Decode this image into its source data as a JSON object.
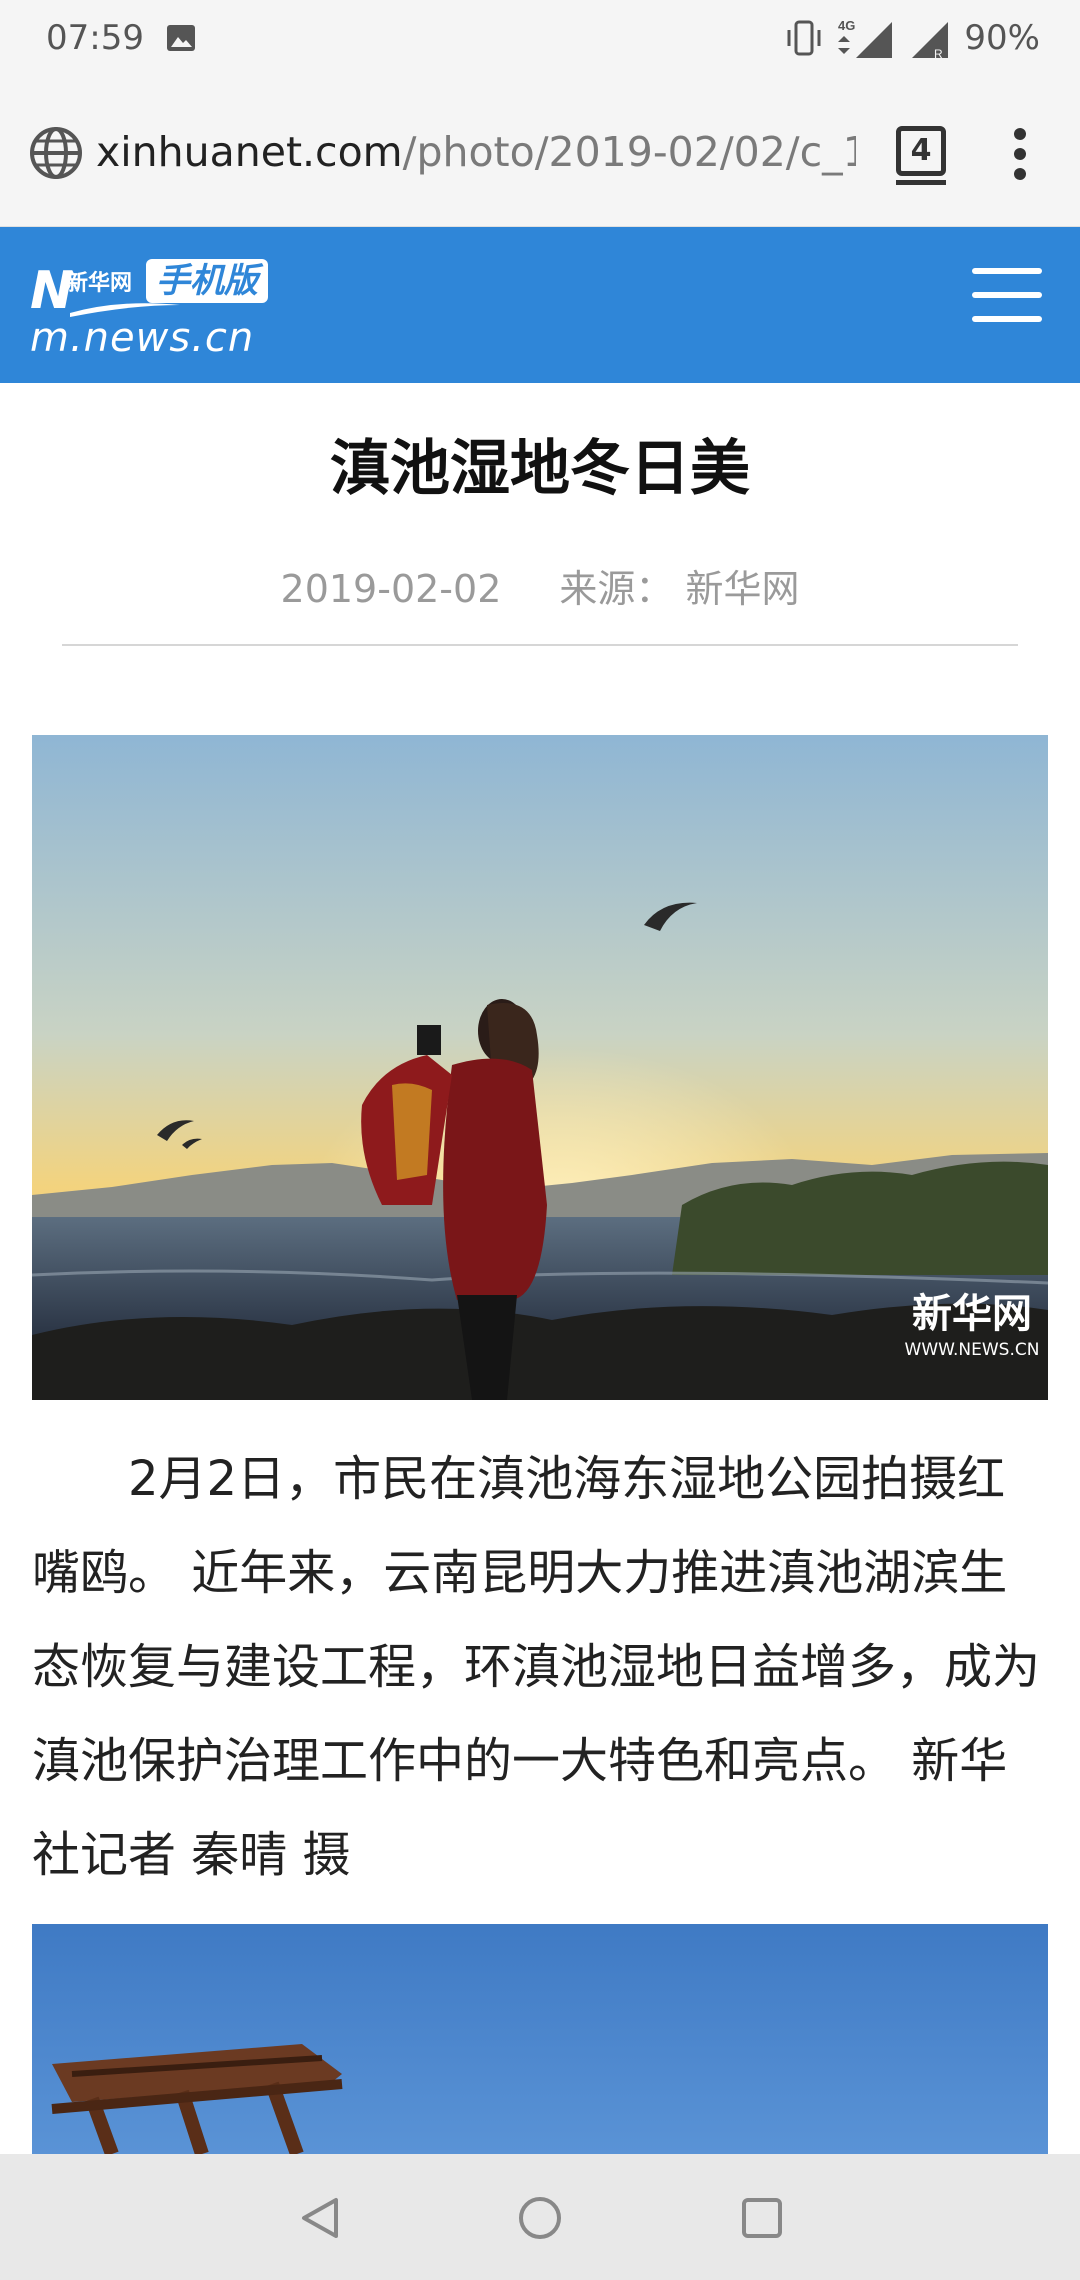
{
  "status": {
    "time": "07:59",
    "network": "4G",
    "battery": "90%"
  },
  "browser": {
    "url_domain": "xinhuanet.com",
    "url_path": "/photo/2019-02/02/c_1",
    "tab_count": "4"
  },
  "site": {
    "logo_mark": "N",
    "logo_cn": "新华网",
    "logo_badge": "手机版",
    "domain": "m.news.cn"
  },
  "article": {
    "title": "滇池湿地冬日美",
    "date": "2019-02-02",
    "source": "来源： 新华网",
    "body": "2月2日，市民在滇池海东湿地公园拍摄红嘴鸥。 近年来，云南昆明大力推进滇池湖滨生态恢复与建设工程，环滇池湿地日益增多，成为滇池保护治理工作中的一大特色和亮点。 新华社记者 秦晴 摄",
    "watermark_cn": "新华网",
    "watermark_en": "WWW.NEWS.CN"
  },
  "colors": {
    "header_blue": "#2f86d8"
  },
  "icons": [
    "image-icon",
    "vibrate-icon",
    "signal-icon",
    "globe-icon",
    "tab-switcher-icon",
    "more-vert-icon",
    "hamburger-icon",
    "back-icon",
    "home-icon",
    "recents-icon"
  ]
}
